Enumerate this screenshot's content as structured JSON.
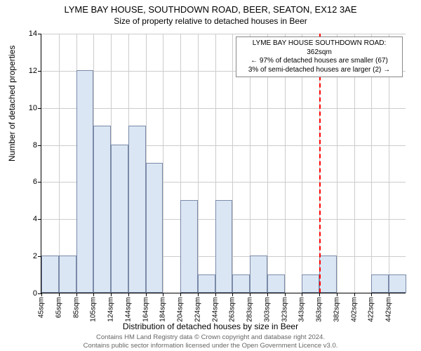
{
  "header": {
    "title": "LYME BAY HOUSE, SOUTHDOWN ROAD, BEER, SEATON, EX12 3AE",
    "subtitle": "Size of property relative to detached houses in Beer"
  },
  "chart": {
    "type": "histogram",
    "bar_fill": "#dbe6f4",
    "bar_stroke": "#7a8aa8",
    "grid_color": "#cccccc",
    "background": "#ffffff",
    "axis_color": "#000000",
    "ylabel": "Number of detached properties",
    "xlabel": "Distribution of detached houses by size in Beer",
    "label_fontsize": 12,
    "tick_fontsize": 11,
    "ylim": [
      0,
      14
    ],
    "yticks": [
      0,
      2,
      4,
      6,
      8,
      10,
      12,
      14
    ],
    "xtick_labels": [
      "45sqm",
      "65sqm",
      "85sqm",
      "105sqm",
      "124sqm",
      "144sqm",
      "164sqm",
      "184sqm",
      "204sqm",
      "224sqm",
      "244sqm",
      "263sqm",
      "283sqm",
      "303sqm",
      "323sqm",
      "343sqm",
      "363sqm",
      "382sqm",
      "402sqm",
      "422sqm",
      "442sqm"
    ],
    "values": [
      2,
      2,
      12,
      9,
      8,
      9,
      7,
      0,
      5,
      1,
      5,
      1,
      2,
      1,
      0,
      1,
      2,
      0,
      0,
      1,
      1
    ],
    "marker": {
      "x_index": 16,
      "color": "#ff0000",
      "dash": "dashed"
    },
    "annotation": {
      "lines": [
        "LYME BAY HOUSE SOUTHDOWN ROAD: 362sqm",
        "← 97% of detached houses are smaller (67)",
        "3% of semi-detached houses are larger (2) →"
      ],
      "border_color": "#888888",
      "bg": "#ffffff",
      "fontsize": 10
    }
  },
  "footer": {
    "line1": "Contains HM Land Registry data © Crown copyright and database right 2024.",
    "line2": "Contains public sector information licensed under the Open Government Licence v3.0."
  }
}
